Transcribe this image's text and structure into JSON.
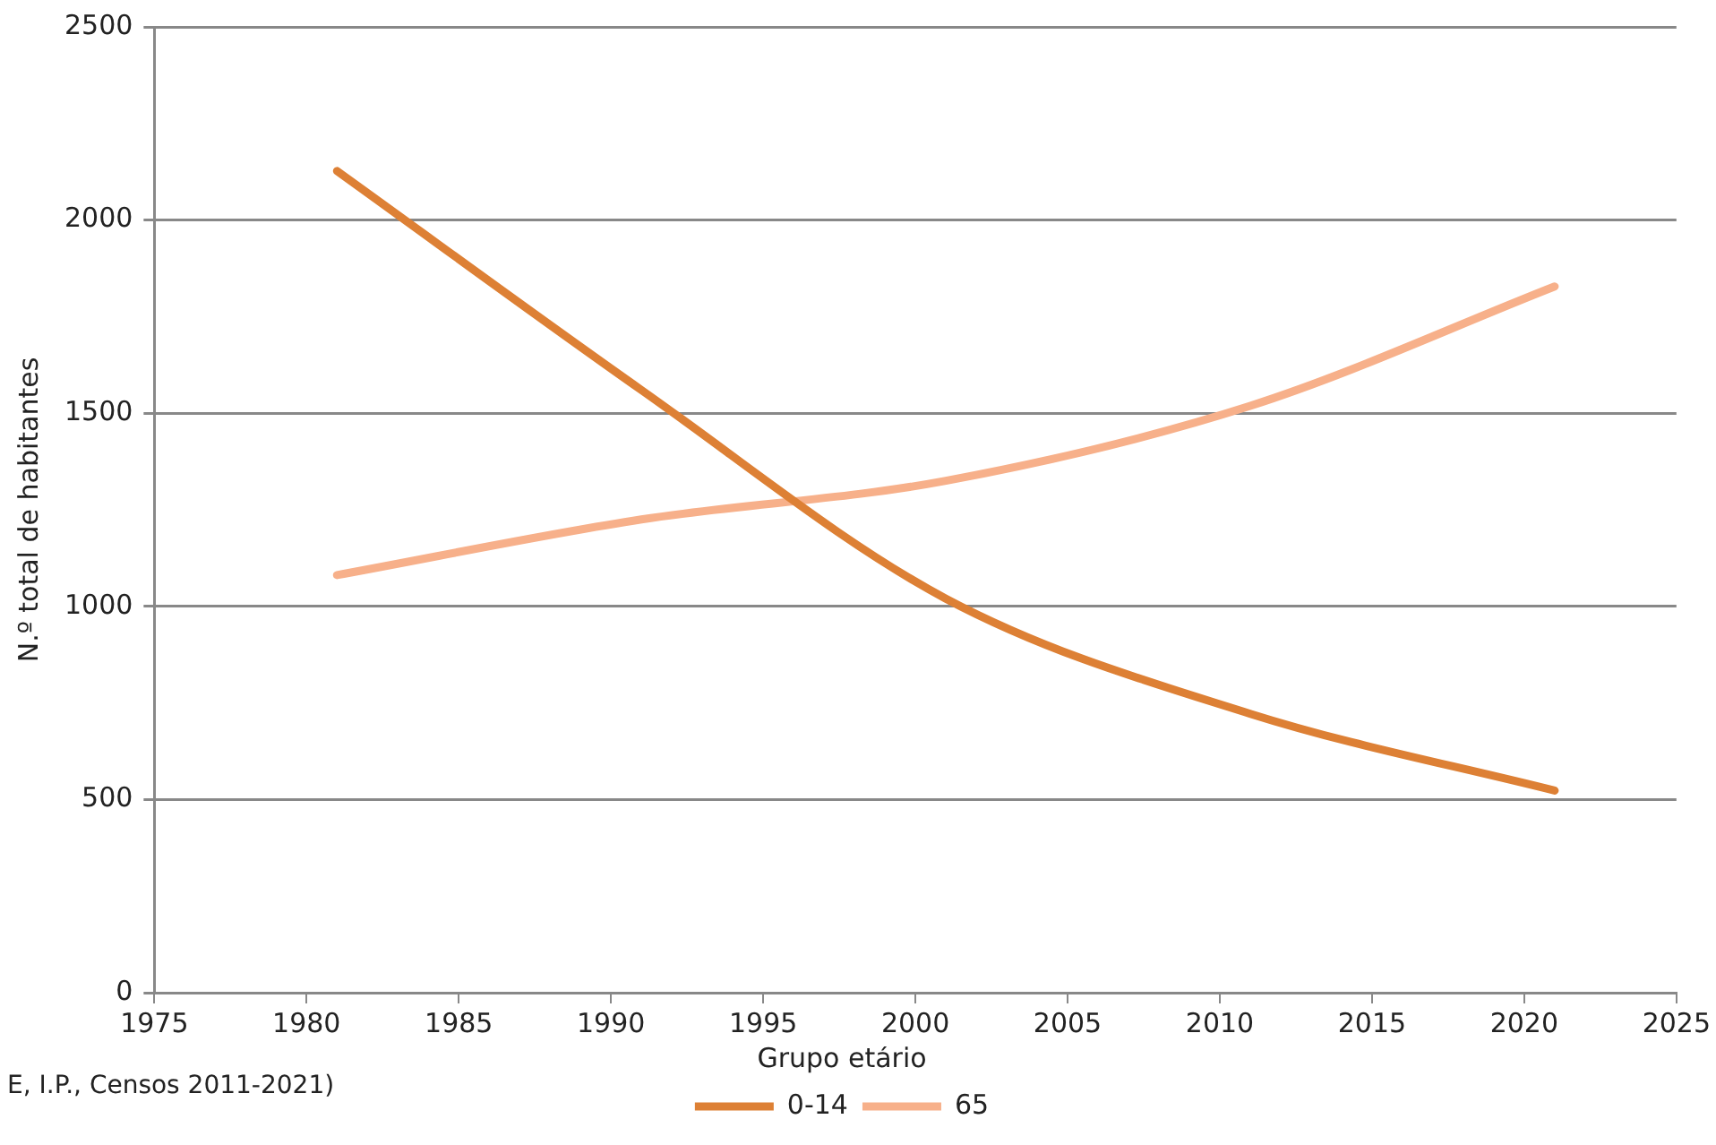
{
  "chart_data": {
    "type": "line",
    "xlabel": null,
    "ylabel": "N.º total de habitantes",
    "legend_title": "Grupo etário",
    "legend": "bottom",
    "grid": "y",
    "marker": "none",
    "line_style": "solid",
    "x": [
      1981,
      1991,
      2001,
      2011,
      2021
    ],
    "xlim": [
      1975,
      2025
    ],
    "xticks": [
      1975,
      1980,
      1985,
      1990,
      1995,
      2000,
      2005,
      2010,
      2015,
      2020,
      2025
    ],
    "ylim": [
      0,
      2500
    ],
    "yticks": [
      0,
      500,
      1000,
      1500,
      2000,
      2500
    ],
    "series": [
      {
        "name": "0-14",
        "color": "#dd8035",
        "values": [
          2127,
          1560,
          1020,
          722,
          523
        ]
      },
      {
        "name": "65",
        "color": "#f7b08a",
        "values": [
          1081,
          1225,
          1325,
          1519,
          1828
        ]
      }
    ],
    "annotations": [
      "E, I.P., Censos 2011-2021)"
    ]
  }
}
